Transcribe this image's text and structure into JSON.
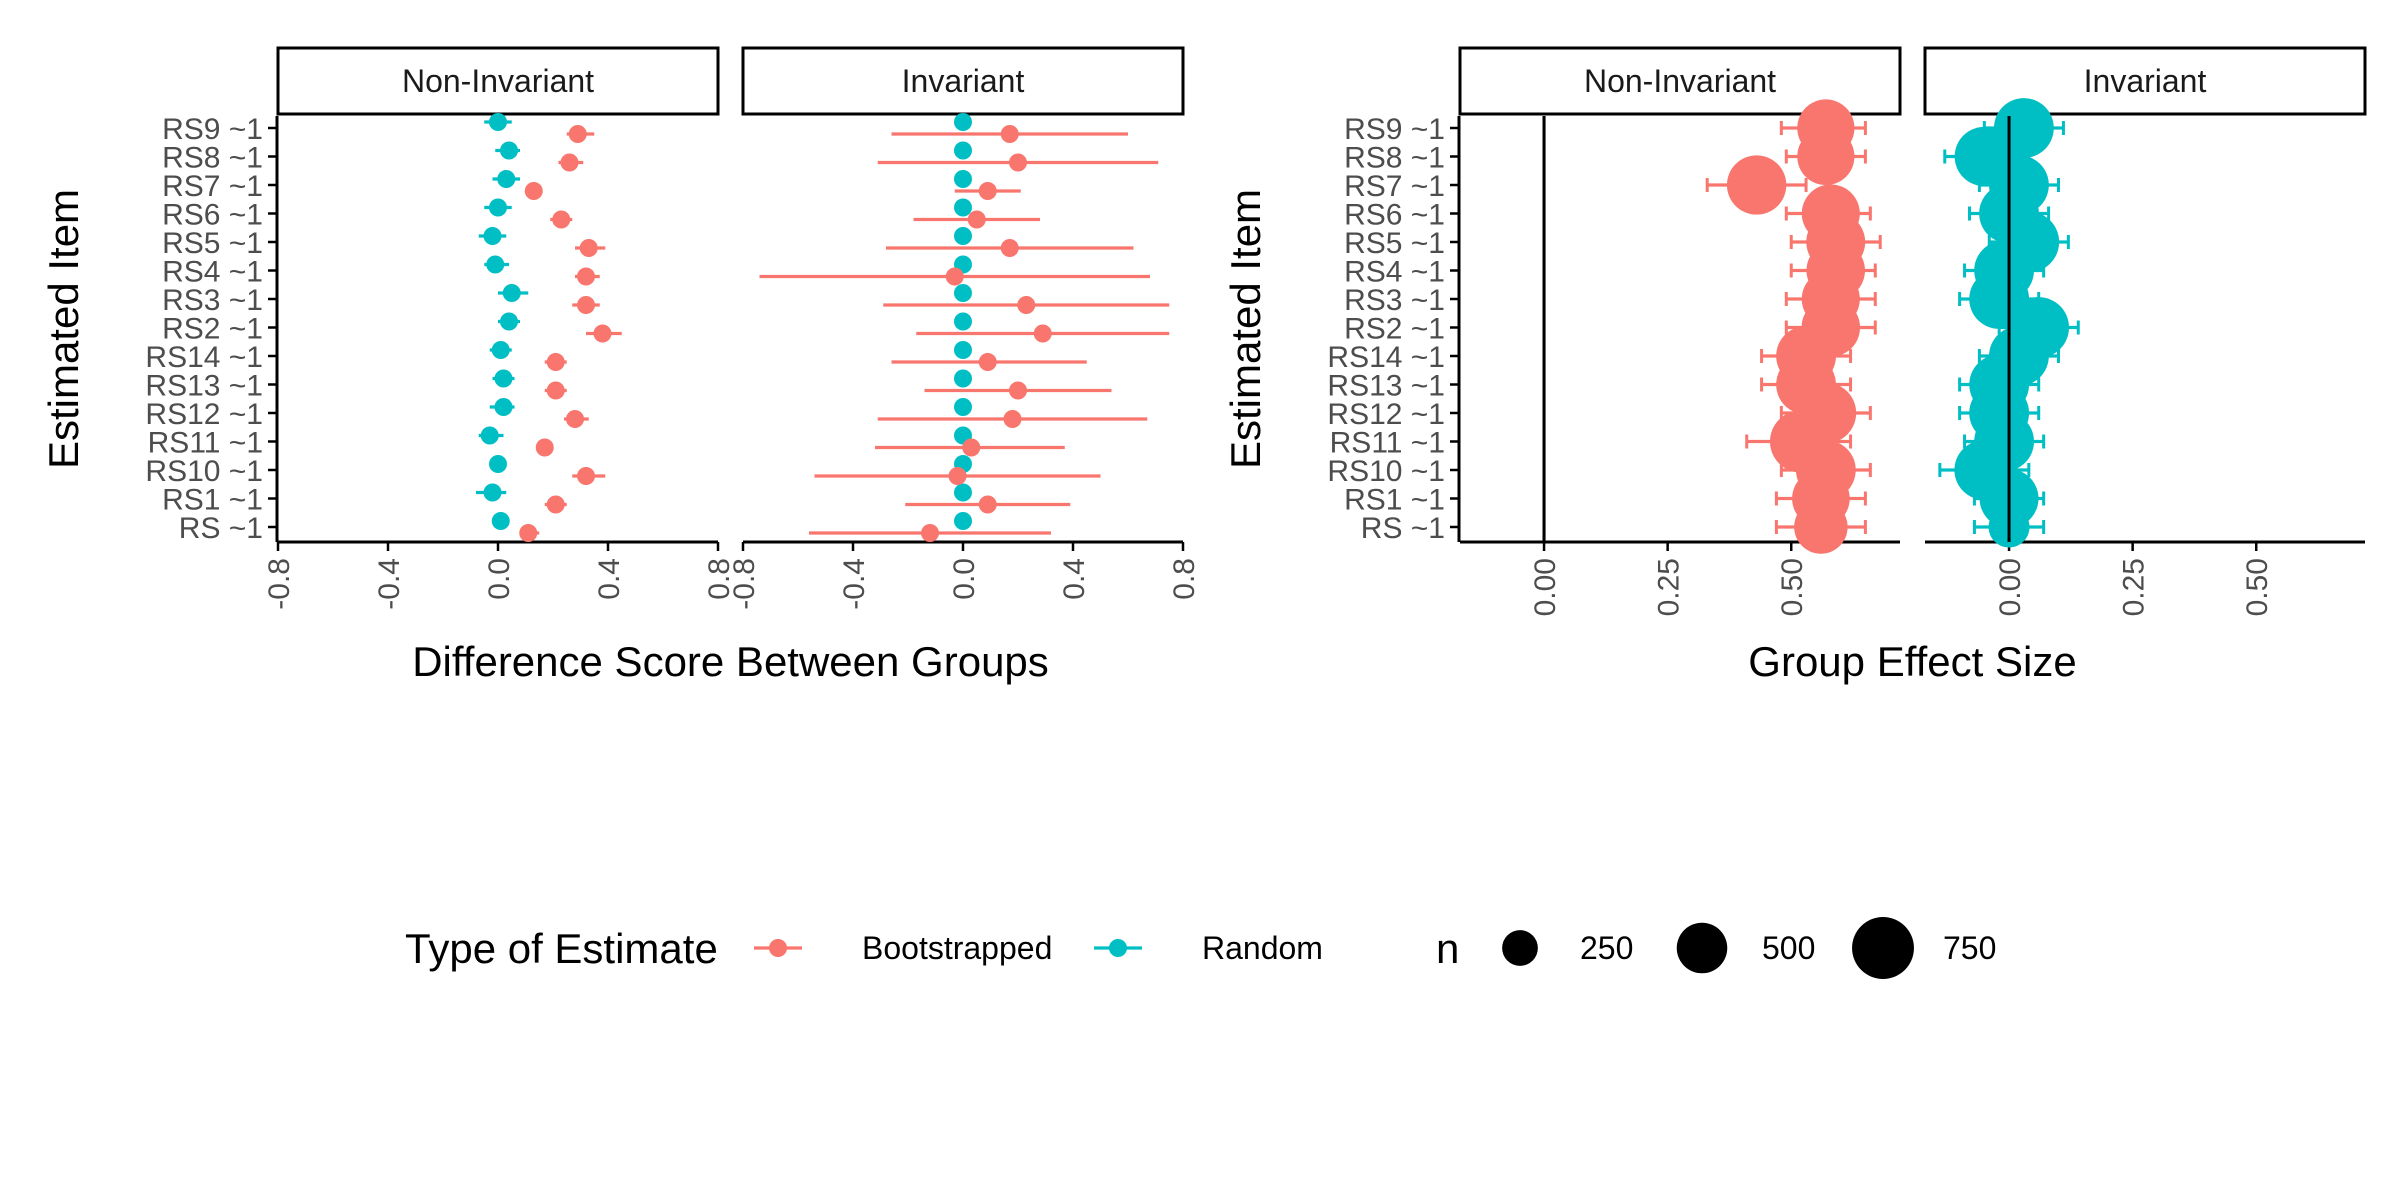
{
  "colors": {
    "bootstrapped": "#F8766D",
    "random": "#00BFC4",
    "axis": "#000000",
    "tick_text": "#4d4d4d"
  },
  "chart_data": [
    {
      "type": "scatter",
      "subtype": "dot-and-interval, faceted",
      "xlabel": "Difference Score Between Groups",
      "ylabel": "Estimated Item",
      "xlim": [
        -0.8,
        0.8
      ],
      "xticks": [
        "-0.8",
        "-0.4",
        "0.0",
        "0.4",
        "0.8"
      ],
      "categories": [
        "RS9 ~1",
        "RS8 ~1",
        "RS7 ~1",
        "RS6 ~1",
        "RS5 ~1",
        "RS4 ~1",
        "RS3 ~1",
        "RS2 ~1",
        "RS14 ~1",
        "RS13 ~1",
        "RS12 ~1",
        "RS11 ~1",
        "RS10 ~1",
        "RS1 ~1",
        "RS ~1"
      ],
      "facets": [
        {
          "label": "Non-Invariant",
          "series": [
            {
              "name": "Bootstrapped",
              "x": [
                0.29,
                0.26,
                0.13,
                0.23,
                0.33,
                0.32,
                0.32,
                0.38,
                0.21,
                0.21,
                0.28,
                0.17,
                0.32,
                0.21,
                0.11
              ],
              "lo": [
                0.25,
                0.22,
                0.11,
                0.19,
                0.28,
                0.28,
                0.27,
                0.32,
                0.17,
                0.17,
                0.24,
                0.15,
                0.27,
                0.17,
                0.08
              ],
              "hi": [
                0.35,
                0.31,
                0.15,
                0.27,
                0.39,
                0.37,
                0.37,
                0.45,
                0.25,
                0.25,
                0.33,
                0.2,
                0.39,
                0.25,
                0.15
              ]
            },
            {
              "name": "Random",
              "x": [
                0.0,
                0.04,
                0.03,
                0.0,
                -0.02,
                -0.01,
                0.05,
                0.04,
                0.01,
                0.02,
                0.02,
                -0.03,
                0.0,
                -0.02,
                0.01
              ],
              "lo": [
                -0.05,
                -0.01,
                -0.02,
                -0.05,
                -0.07,
                -0.05,
                0.0,
                0.0,
                -0.03,
                -0.02,
                -0.03,
                -0.07,
                -0.03,
                -0.08,
                -0.02
              ],
              "hi": [
                0.05,
                0.08,
                0.08,
                0.05,
                0.03,
                0.04,
                0.11,
                0.08,
                0.05,
                0.06,
                0.06,
                0.02,
                0.03,
                0.03,
                0.04
              ]
            }
          ]
        },
        {
          "label": "Invariant",
          "series": [
            {
              "name": "Bootstrapped",
              "x": [
                0.17,
                0.2,
                0.09,
                0.05,
                0.17,
                -0.03,
                0.23,
                0.29,
                0.09,
                0.2,
                0.18,
                0.03,
                -0.02,
                0.09,
                -0.12
              ],
              "lo": [
                -0.26,
                -0.31,
                -0.03,
                -0.18,
                -0.28,
                -0.74,
                -0.29,
                -0.17,
                -0.26,
                -0.14,
                -0.31,
                -0.32,
                -0.54,
                -0.21,
                -0.56
              ],
              "hi": [
                0.6,
                0.71,
                0.21,
                0.28,
                0.62,
                0.68,
                0.75,
                0.75,
                0.45,
                0.54,
                0.67,
                0.37,
                0.5,
                0.39,
                0.32
              ]
            },
            {
              "name": "Random",
              "x": [
                0.0,
                0.0,
                0.0,
                0.0,
                0.0,
                0.0,
                0.0,
                0.0,
                0.0,
                0.0,
                0.0,
                0.0,
                0.0,
                0.0,
                0.0
              ],
              "lo": [
                0.0,
                0.0,
                0.0,
                0.0,
                0.0,
                0.0,
                0.0,
                0.0,
                0.0,
                0.0,
                0.0,
                0.0,
                0.0,
                0.0,
                0.0
              ],
              "hi": [
                0.0,
                0.0,
                0.0,
                0.0,
                0.0,
                0.0,
                0.0,
                0.0,
                0.0,
                0.0,
                0.0,
                0.0,
                0.0,
                0.0,
                0.0
              ]
            }
          ]
        }
      ]
    },
    {
      "type": "scatter",
      "subtype": "dot-and-interval sized by n, faceted",
      "xlabel": "Group Effect Size",
      "ylabel": "Estimated Item",
      "xlim": [
        -0.17,
        0.72
      ],
      "xticks": [
        "0.00",
        "0.25",
        "0.50"
      ],
      "reference_line_x": 0,
      "categories": [
        "RS9 ~1",
        "RS8 ~1",
        "RS7 ~1",
        "RS6 ~1",
        "RS5 ~1",
        "RS4 ~1",
        "RS3 ~1",
        "RS2 ~1",
        "RS14 ~1",
        "RS13 ~1",
        "RS12 ~1",
        "RS11 ~1",
        "RS10 ~1",
        "RS1 ~1",
        "RS ~1"
      ],
      "facets": [
        {
          "label": "Non-Invariant",
          "series": [
            {
              "name": "Bootstrapped",
              "x": [
                0.57,
                0.57,
                0.43,
                0.58,
                0.59,
                0.59,
                0.58,
                0.58,
                0.53,
                0.53,
                0.57,
                0.52,
                0.57,
                0.56,
                0.56
              ],
              "lo": [
                0.48,
                0.49,
                0.33,
                0.49,
                0.5,
                0.5,
                0.49,
                0.49,
                0.44,
                0.44,
                0.48,
                0.41,
                0.48,
                0.47,
                0.47
              ],
              "hi": [
                0.65,
                0.65,
                0.53,
                0.66,
                0.68,
                0.67,
                0.67,
                0.67,
                0.62,
                0.62,
                0.66,
                0.62,
                0.66,
                0.65,
                0.65
              ],
              "n": [
                640,
                640,
                690,
                660,
                680,
                670,
                660,
                670,
                700,
                700,
                720,
                760,
                700,
                650,
                560
              ]
            }
          ]
        },
        {
          "label": "Invariant",
          "series": [
            {
              "name": "Random",
              "x": [
                0.03,
                -0.05,
                0.02,
                0.0,
                0.04,
                -0.01,
                -0.02,
                0.06,
                0.02,
                -0.02,
                -0.02,
                -0.01,
                -0.05,
                0.0,
                0.0
              ],
              "lo": [
                -0.05,
                -0.13,
                -0.06,
                -0.08,
                -0.04,
                -0.09,
                -0.1,
                -0.02,
                -0.06,
                -0.1,
                -0.1,
                -0.09,
                -0.14,
                -0.07,
                -0.07
              ],
              "hi": [
                0.11,
                0.03,
                0.1,
                0.08,
                0.12,
                0.07,
                0.06,
                0.14,
                0.1,
                0.06,
                0.06,
                0.07,
                0.04,
                0.07,
                0.07
              ],
              "n": [
                700,
                690,
                700,
                700,
                720,
                700,
                700,
                720,
                700,
                700,
                700,
                700,
                700,
                680,
                330
              ]
            }
          ]
        }
      ]
    }
  ],
  "legend": {
    "type_title": "Type of Estimate",
    "type_items": [
      {
        "label": "Bootstrapped",
        "color": "#F8766D"
      },
      {
        "label": "Random",
        "color": "#00BFC4"
      }
    ],
    "size_title": "n",
    "size_items": [
      {
        "label": "250",
        "n": 250
      },
      {
        "label": "500",
        "n": 500
      },
      {
        "label": "750",
        "n": 750
      }
    ],
    "placement": "bottom"
  }
}
